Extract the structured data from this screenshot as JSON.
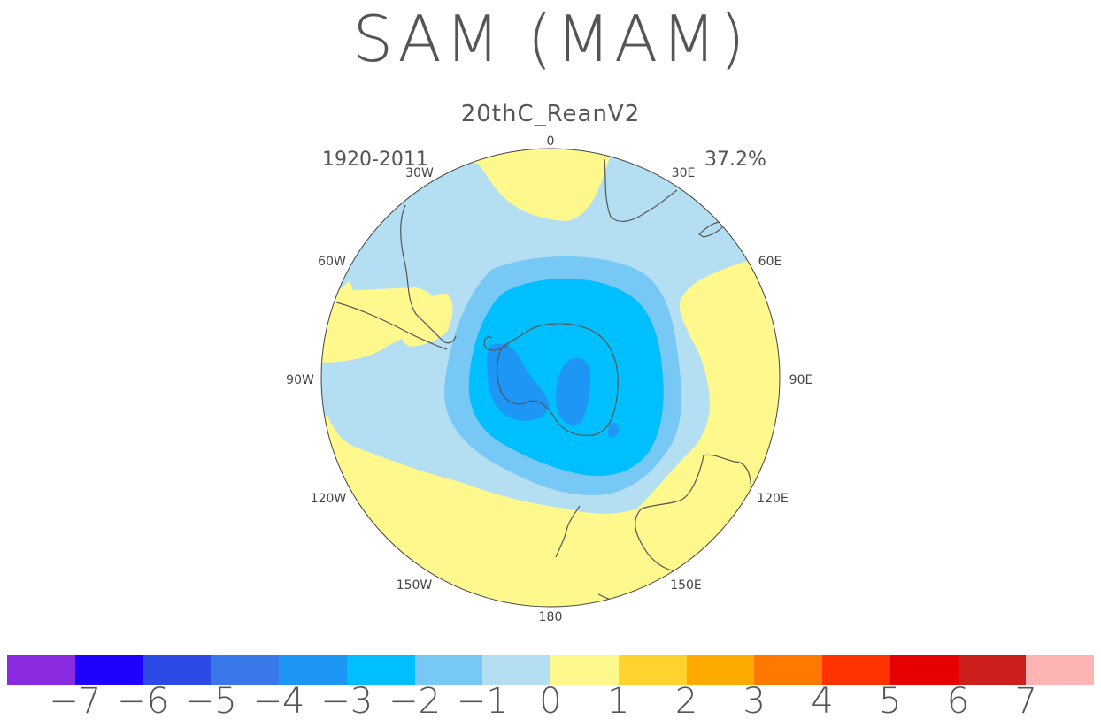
{
  "title": "SAM (MAM)",
  "subtitle": "20thC_ReanV2",
  "period": "1920-2011",
  "variance": "37.2%",
  "longitude_labels": [
    "0",
    "30E",
    "60E",
    "90E",
    "120E",
    "150E",
    "180",
    "150W",
    "120W",
    "90W",
    "60W",
    "30W"
  ],
  "colorbar": {
    "colors": [
      "#8a2be2",
      "#1e00ff",
      "#2d4ae6",
      "#3878e8",
      "#1e96f5",
      "#00bfff",
      "#78c8f5",
      "#b4def2",
      "#fff88c",
      "#ffd22d",
      "#ffaa00",
      "#ff7800",
      "#ff3200",
      "#e60000",
      "#cd1e1e",
      "#ffb4b4"
    ],
    "tick_labels": [
      "−7",
      "−6",
      "−5",
      "−4",
      "−3",
      "−2",
      "−1",
      "0",
      "1",
      "2",
      "3",
      "4",
      "5",
      "6",
      "7"
    ]
  }
}
